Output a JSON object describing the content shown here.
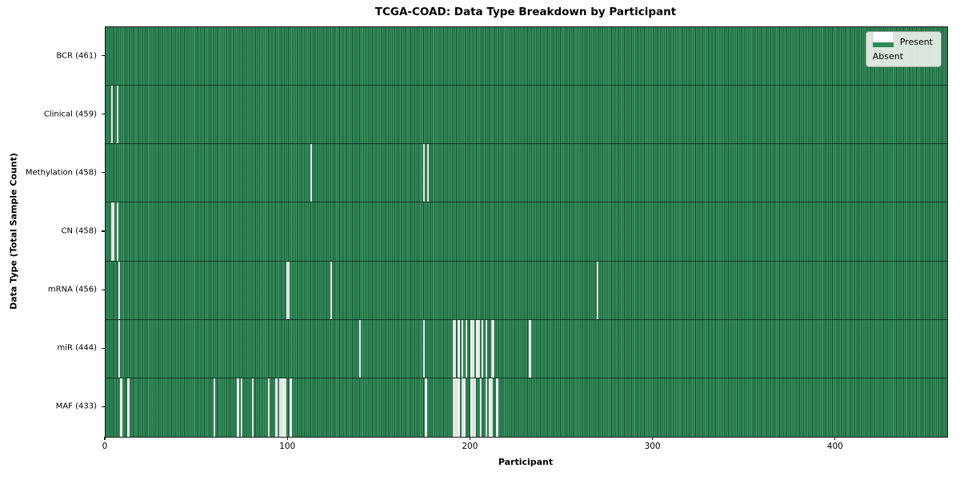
{
  "title": "TCGA-COAD: Data Type Breakdown by Participant",
  "colors": {
    "present": "#2e8b57",
    "absent": "#ffffff",
    "cell_edge": "#0a2819",
    "legend_background": "#eaf0e9"
  },
  "chart_data": {
    "type": "heatmap",
    "title": "TCGA-COAD: Data Type Breakdown by Participant",
    "xlabel": "Participant",
    "ylabel": "Data Type (Total Sample Count)",
    "x_ticks": [
      0,
      100,
      200,
      300,
      400
    ],
    "n_participants": 461,
    "grid": false,
    "legend_position": "upper right",
    "legend": [
      {
        "label": "Present",
        "color": "#2e8b57"
      },
      {
        "label": "Absent",
        "color": "#ffffff"
      }
    ],
    "rows": [
      {
        "data_type": "BCR",
        "label": "BCR (461)",
        "present_count": 461,
        "absent_participants": []
      },
      {
        "data_type": "Clinical",
        "label": "Clinical (459)",
        "present_count": 459,
        "absent_participants": [
          3,
          6
        ]
      },
      {
        "data_type": "Methylation",
        "label": "Methylation (458)",
        "present_count": 458,
        "absent_participants": [
          112,
          174,
          176
        ]
      },
      {
        "data_type": "CN",
        "label": "CN (458)",
        "present_count": 458,
        "absent_participants": [
          3,
          4,
          6
        ]
      },
      {
        "data_type": "mRNA",
        "label": "mRNA (456)",
        "present_count": 456,
        "absent_participants": [
          7,
          99,
          100,
          123,
          269
        ]
      },
      {
        "data_type": "miR",
        "label": "miR (444)",
        "present_count": 444,
        "absent_participants": [
          7,
          139,
          174,
          190,
          191,
          193,
          195,
          197,
          200,
          201,
          203,
          204,
          206,
          208,
          211,
          212,
          232
        ]
      },
      {
        "data_type": "MAF",
        "label": "MAF (433)",
        "present_count": 433,
        "absent_participants": [
          8,
          12,
          59,
          72,
          74,
          80,
          89,
          93,
          95,
          96,
          97,
          98,
          101,
          175,
          190,
          191,
          192,
          193,
          195,
          196,
          200,
          201,
          202,
          205,
          208,
          210,
          211,
          214
        ]
      }
    ]
  }
}
